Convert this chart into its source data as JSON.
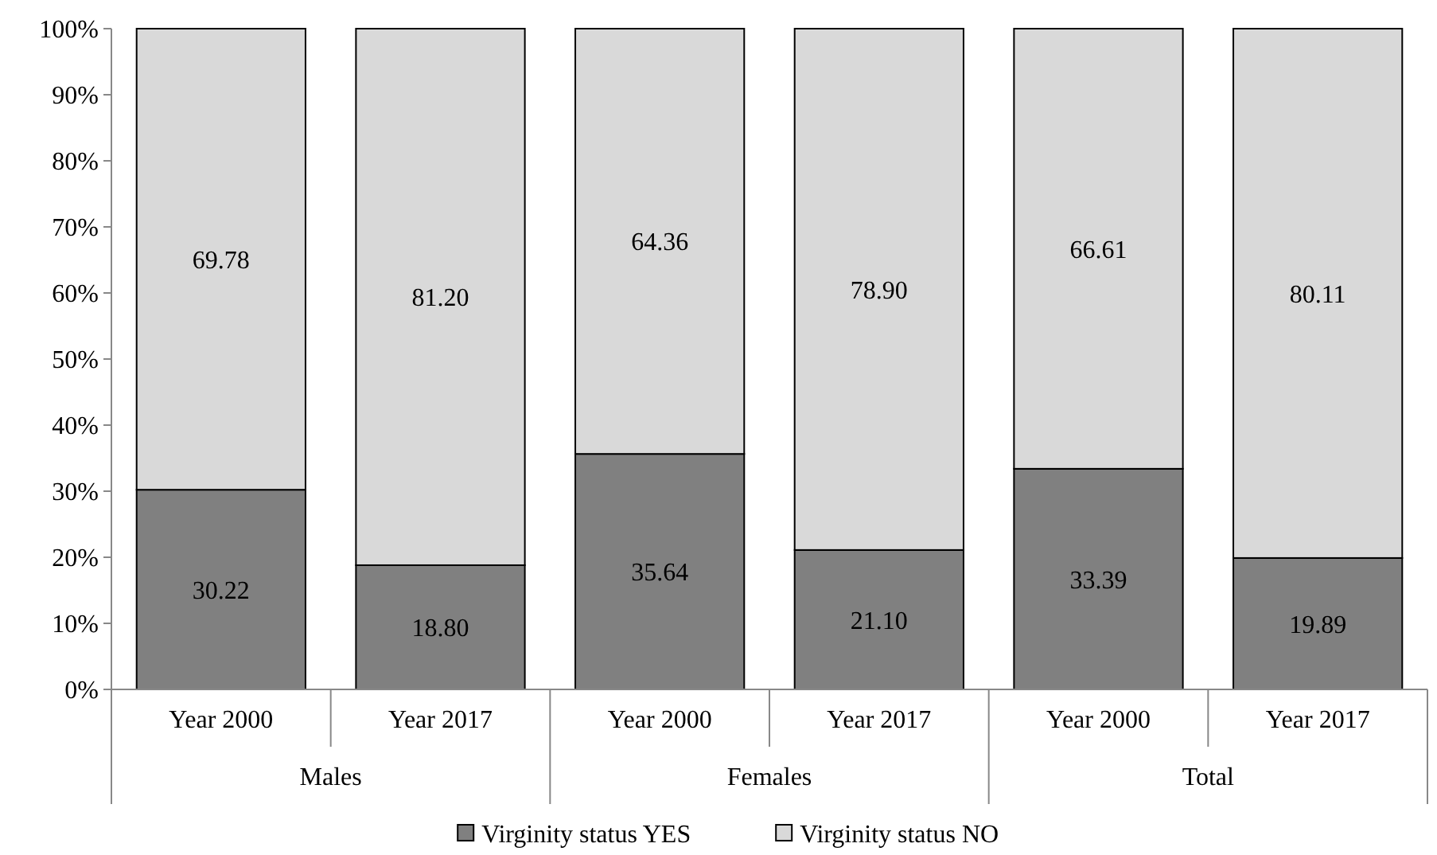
{
  "chart_data": {
    "type": "bar",
    "stacked": true,
    "categories": [
      "Year 2000",
      "Year 2017",
      "Year 2000",
      "Year 2017",
      "Year 2000",
      "Year 2017"
    ],
    "series": [
      {
        "name": "Virginity status YES",
        "color": "#808080",
        "values": [
          30.22,
          18.8,
          35.64,
          21.1,
          33.39,
          19.89
        ],
        "value_labels": [
          "30.22",
          "18.80",
          "35.64",
          "21.10",
          "33.39",
          "19.89"
        ]
      },
      {
        "name": "Virginity status NO",
        "color": "#d9d9d9",
        "values": [
          69.78,
          81.2,
          64.36,
          78.9,
          66.61,
          80.11
        ],
        "value_labels": [
          "69.78",
          "81.20",
          "64.36",
          "78.90",
          "66.61",
          "80.11"
        ]
      }
    ],
    "ylim": [
      0,
      100
    ],
    "yticks": [
      {
        "value": 0,
        "label": "0%"
      },
      {
        "value": 10,
        "label": "10%"
      },
      {
        "value": 20,
        "label": "20%"
      },
      {
        "value": 30,
        "label": "30%"
      },
      {
        "value": 40,
        "label": "40%"
      },
      {
        "value": 50,
        "label": "50%"
      },
      {
        "value": 60,
        "label": "60%"
      },
      {
        "value": 70,
        "label": "70%"
      },
      {
        "value": 80,
        "label": "80%"
      },
      {
        "value": 90,
        "label": "90%"
      },
      {
        "value": 100,
        "label": "100%"
      }
    ],
    "legend": "bottom",
    "annotations": [
      "Males",
      "Females",
      "Total"
    ]
  }
}
